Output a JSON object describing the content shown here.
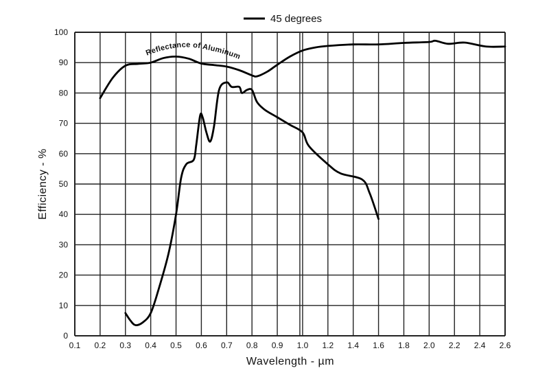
{
  "chart_data": {
    "type": "line",
    "title": "",
    "xlabel": "Wavelength - µm",
    "ylabel": "Efficiency - %",
    "x_ticks": [
      "0.1",
      "0.2",
      "0.3",
      "0.4",
      "0.5",
      "0.6",
      "0.7",
      "0.8",
      "0.9",
      "1.0",
      "1.2",
      "1.4",
      "1.6",
      "1.8",
      "2.0",
      "2.2",
      "2.4",
      "2.6"
    ],
    "x_scale_note": "0.1 steps up to 1.0, then 0.2 steps to 2.6 (equal tick spacing)",
    "y_ticks": [
      "0",
      "10",
      "20",
      "30",
      "40",
      "50",
      "60",
      "70",
      "80",
      "90",
      "100"
    ],
    "xlim": [
      0.1,
      2.6
    ],
    "ylim": [
      0,
      100
    ],
    "grid": true,
    "legend": {
      "position": "top-center",
      "entries": [
        "45 degrees"
      ]
    },
    "annotations": [
      "Reflectance of Aluminum"
    ],
    "series": [
      {
        "name": "Reflectance of Aluminum",
        "x": [
          0.2,
          0.25,
          0.3,
          0.35,
          0.4,
          0.45,
          0.5,
          0.55,
          0.6,
          0.65,
          0.7,
          0.75,
          0.8,
          0.82,
          0.86,
          0.9,
          0.95,
          1.0,
          1.1,
          1.2,
          1.4,
          1.6,
          1.8,
          2.0,
          2.05,
          2.15,
          2.28,
          2.45,
          2.6
        ],
        "y": [
          78.3,
          85,
          89,
          89.6,
          90,
          91.5,
          92,
          91.3,
          89.7,
          89.2,
          88.7,
          87.5,
          85.8,
          85.5,
          87,
          89.3,
          92,
          94,
          95,
          95.5,
          96,
          96,
          96.5,
          96.8,
          97.2,
          96.2,
          96.6,
          95.3,
          95.3
        ]
      },
      {
        "name": "45 degrees",
        "x": [
          0.3,
          0.32,
          0.34,
          0.37,
          0.4,
          0.43,
          0.47,
          0.5,
          0.52,
          0.54,
          0.57,
          0.58,
          0.595,
          0.605,
          0.62,
          0.635,
          0.65,
          0.67,
          0.7,
          0.72,
          0.75,
          0.76,
          0.78,
          0.8,
          0.82,
          0.85,
          0.9,
          0.95,
          1.0,
          1.05,
          1.2,
          1.3,
          1.47,
          1.53,
          1.6
        ],
        "y": [
          7.5,
          5,
          3.5,
          4.5,
          7.5,
          15,
          27,
          40,
          52,
          56.5,
          58,
          63,
          72.5,
          72,
          67,
          64,
          69,
          81,
          83.5,
          82,
          82,
          80,
          81,
          81,
          77,
          74.5,
          72,
          69.5,
          67,
          62.5,
          56.5,
          53.5,
          51.5,
          47,
          38.5
        ]
      }
    ]
  }
}
